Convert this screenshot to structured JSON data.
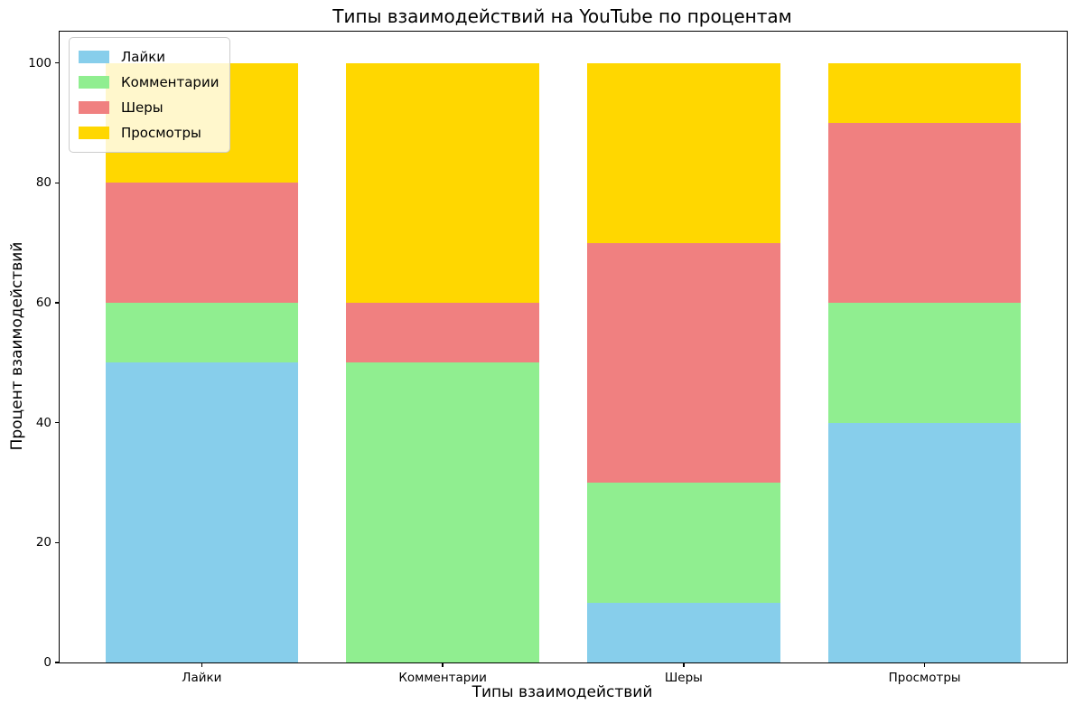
{
  "title": "Типы взаимодействий на YouTube по процентам",
  "chart_data": {
    "type": "bar",
    "variant": "stacked_vertical",
    "title": "Типы взаимодействий на YouTube по процентам",
    "xlabel": "Типы взаимодействий",
    "ylabel": "Процент взаимодействий",
    "categories": [
      "Лайки",
      "Комментарии",
      "Шеры",
      "Просмотры"
    ],
    "series": [
      {
        "name": "Лайки",
        "color": "#87CEEB",
        "values": [
          50,
          0,
          10,
          40
        ]
      },
      {
        "name": "Комментарии",
        "color": "#90EE90",
        "values": [
          10,
          50,
          20,
          20
        ]
      },
      {
        "name": "Шеры",
        "color": "#F08080",
        "values": [
          20,
          10,
          40,
          30
        ]
      },
      {
        "name": "Просмотры",
        "color": "#FFD700",
        "values": [
          20,
          40,
          30,
          10
        ]
      }
    ],
    "stack_totals": [
      100,
      100,
      100,
      100
    ],
    "y_ticks": [
      0,
      20,
      40,
      60,
      80,
      100
    ],
    "ylim": [
      0,
      105
    ],
    "grid": false,
    "legend_position": "upper left",
    "bar_width_fraction": 0.8
  },
  "legend": {
    "items": [
      {
        "label": "Лайки"
      },
      {
        "label": "Комментарии"
      },
      {
        "label": "Шеры"
      },
      {
        "label": "Просмотры"
      }
    ]
  }
}
